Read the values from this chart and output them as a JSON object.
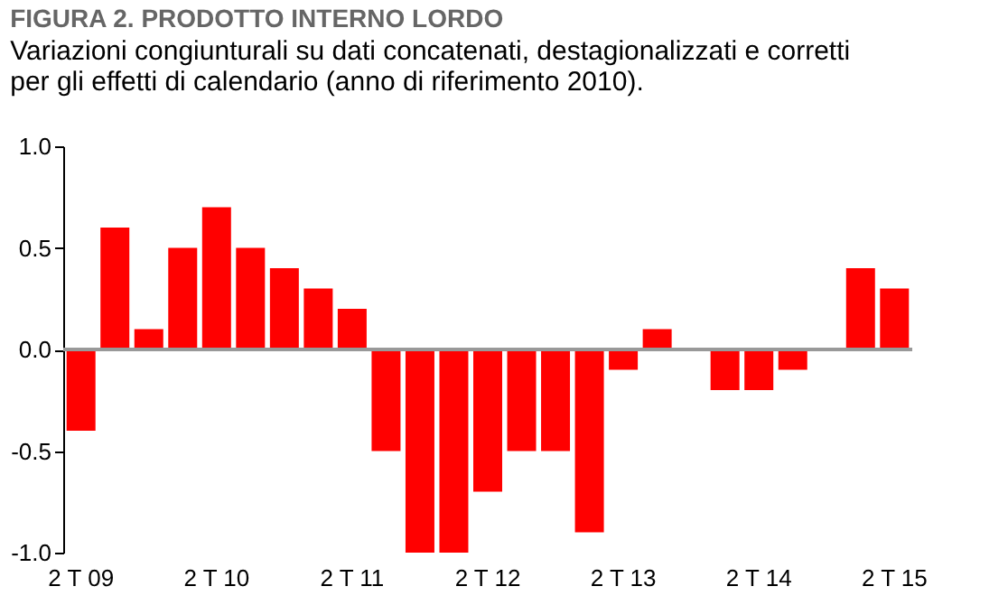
{
  "chart_data": {
    "type": "bar",
    "title": "FIGURA 2. PRODOTTO INTERNO LORDO",
    "subtitle": "Variazioni congiunturali su dati concatenati, destagionalizzati e corretti\nper gli effetti di calendario (anno di riferimento 2010).",
    "categories": [
      "2 T 09",
      null,
      null,
      null,
      "2 T 10",
      null,
      null,
      null,
      "2 T 11",
      null,
      null,
      null,
      "2 T 12",
      null,
      null,
      null,
      "2 T 13",
      null,
      null,
      null,
      "2 T 14",
      null,
      null,
      null,
      "2 T 15"
    ],
    "series": [
      {
        "color": "#ff0000",
        "values": [
          -0.4,
          0.6,
          0.1,
          0.5,
          0.7,
          0.5,
          0.4,
          0.3,
          0.2,
          -0.5,
          -1.0,
          -1.0,
          -0.7,
          -0.5,
          -0.5,
          -0.9,
          -0.1,
          0.1,
          0.0,
          -0.2,
          -0.2,
          -0.1,
          0.0,
          0.4,
          0.3
        ]
      }
    ],
    "ylim": [
      -1.0,
      1.0
    ],
    "yticks": [
      {
        "value": -1.0,
        "label": "-1.0"
      },
      {
        "value": -0.5,
        "label": "-0.5"
      },
      {
        "value": 0.0,
        "label": "0.0"
      },
      {
        "value": 0.5,
        "label": "0.5"
      },
      {
        "value": 1.0,
        "label": "1.0"
      }
    ],
    "ref_lines": [
      {
        "axis": "y",
        "value": 0.0,
        "color": "#999999"
      }
    ],
    "grid": false,
    "legend": false
  }
}
